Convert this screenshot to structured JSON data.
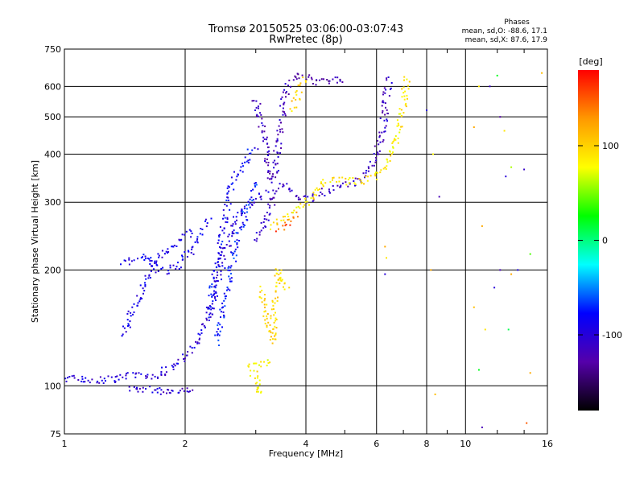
{
  "chart_data": {
    "type": "scatter",
    "title": "Tromsø 20150525 03:06:00-03:07:43",
    "subtitle": "RwPretec (8p)",
    "xlabel": "Frequency [MHz]",
    "ylabel": "Stationary phase Virtual Height [km]",
    "xscale": "log",
    "yscale": "log",
    "xlim": [
      1,
      16
    ],
    "ylim": [
      75,
      750
    ],
    "xticks": [
      1,
      2,
      4,
      6,
      8,
      10,
      16
    ],
    "xtick_labels": [
      "1",
      "2",
      "4",
      "6",
      "8",
      "10",
      "16"
    ],
    "yticks": [
      75,
      100,
      200,
      300,
      400,
      500,
      600,
      750
    ],
    "ytick_labels": [
      "75",
      "100",
      "200",
      "300",
      "400",
      "500",
      "600",
      "750"
    ],
    "grid": true,
    "phases_box": {
      "title": "Phases",
      "line_o": "mean, sd,O: -88.6, 17.1",
      "line_x": "mean, sd,X:  87.6, 17.9"
    },
    "colorbar": {
      "label": "[deg]",
      "range": [
        -180,
        180
      ],
      "ticks": [
        100,
        0,
        -100
      ],
      "tick_labels": [
        "100",
        "0",
        "-100"
      ],
      "colors": [
        "#ff0000",
        "#ff9900",
        "#ffff00",
        "#00ff00",
        "#00ffff",
        "#0000ff",
        "#5500aa",
        "#000000"
      ]
    },
    "traces": [
      {
        "mode": "O",
        "phase": -100,
        "points": [
          [
            1.0,
            105
          ],
          [
            1.1,
            104
          ],
          [
            1.2,
            103
          ],
          [
            1.3,
            104
          ],
          [
            1.4,
            106
          ],
          [
            1.5,
            107
          ],
          [
            1.6,
            106
          ],
          [
            1.7,
            106
          ],
          [
            1.8,
            110
          ],
          [
            1.9,
            113
          ],
          [
            2.0,
            118
          ],
          [
            2.1,
            125
          ],
          [
            2.2,
            137
          ],
          [
            2.3,
            155
          ],
          [
            2.4,
            180
          ],
          [
            2.5,
            215
          ],
          [
            2.6,
            250
          ],
          [
            2.7,
            275
          ],
          [
            2.8,
            290
          ],
          [
            3.0,
            305
          ],
          [
            3.2,
            320
          ]
        ]
      },
      {
        "mode": "O",
        "phase": -92,
        "points": [
          [
            1.4,
            135
          ],
          [
            1.45,
            150
          ],
          [
            1.5,
            160
          ],
          [
            1.55,
            178
          ],
          [
            1.6,
            190
          ],
          [
            1.65,
            200
          ],
          [
            1.7,
            215
          ],
          [
            1.8,
            225
          ],
          [
            1.9,
            235
          ],
          [
            2.0,
            245
          ],
          [
            2.1,
            255
          ]
        ]
      },
      {
        "mode": "O",
        "phase": -90,
        "points": [
          [
            1.4,
            210
          ],
          [
            1.5,
            212
          ],
          [
            1.6,
            218
          ],
          [
            1.65,
            210
          ],
          [
            1.7,
            202
          ],
          [
            1.8,
            198
          ],
          [
            1.9,
            205
          ],
          [
            2.0,
            215
          ],
          [
            2.1,
            230
          ],
          [
            2.2,
            250
          ],
          [
            2.3,
            270
          ]
        ]
      },
      {
        "mode": "O",
        "phase": -105,
        "points": [
          [
            1.45,
            98
          ],
          [
            1.55,
            97
          ],
          [
            1.65,
            98
          ],
          [
            1.75,
            97
          ],
          [
            1.9,
            98
          ],
          [
            2.05,
            97
          ],
          [
            2.1,
            98
          ]
        ]
      },
      {
        "mode": "O",
        "phase": -85,
        "points": [
          [
            2.3,
            150
          ],
          [
            2.35,
            180
          ],
          [
            2.4,
            210
          ],
          [
            2.45,
            240
          ],
          [
            2.5,
            270
          ],
          [
            2.55,
            300
          ],
          [
            2.6,
            330
          ],
          [
            2.7,
            360
          ],
          [
            2.8,
            380
          ],
          [
            2.9,
            400
          ],
          [
            3.0,
            420
          ]
        ]
      },
      {
        "mode": "O",
        "phase": -75,
        "points": [
          [
            2.4,
            130
          ],
          [
            2.5,
            160
          ],
          [
            2.6,
            200
          ],
          [
            2.7,
            240
          ],
          [
            2.8,
            270
          ],
          [
            2.9,
            300
          ],
          [
            3.0,
            340
          ]
        ]
      },
      {
        "mode": "O",
        "phase": -115,
        "points": [
          [
            3.0,
            560
          ],
          [
            3.05,
            520
          ],
          [
            3.1,
            480
          ],
          [
            3.15,
            440
          ],
          [
            3.2,
            400
          ],
          [
            3.25,
            360
          ],
          [
            3.3,
            340
          ],
          [
            3.35,
            360
          ],
          [
            3.4,
            420
          ],
          [
            3.5,
            520
          ],
          [
            3.6,
            600
          ],
          [
            3.8,
            640
          ]
        ]
      },
      {
        "mode": "O",
        "phase": -120,
        "points": [
          [
            3.8,
            640
          ],
          [
            4.0,
            635
          ],
          [
            4.2,
            610
          ],
          [
            4.4,
            615
          ],
          [
            4.6,
            620
          ],
          [
            4.8,
            625
          ],
          [
            5.0,
            630
          ]
        ]
      },
      {
        "mode": "O",
        "phase": -112,
        "points": [
          [
            3.0,
            240
          ],
          [
            3.1,
            255
          ],
          [
            3.2,
            270
          ],
          [
            3.3,
            300
          ],
          [
            3.4,
            325
          ],
          [
            3.5,
            335
          ],
          [
            3.6,
            330
          ],
          [
            3.7,
            320
          ],
          [
            3.8,
            310
          ],
          [
            4.0,
            305
          ],
          [
            4.2,
            310
          ],
          [
            4.5,
            320
          ],
          [
            4.8,
            330
          ],
          [
            5.0,
            335
          ],
          [
            5.3,
            340
          ],
          [
            5.6,
            350
          ],
          [
            5.8,
            370
          ],
          [
            6.0,
            400
          ],
          [
            6.2,
            450
          ],
          [
            6.3,
            520
          ],
          [
            6.4,
            600
          ],
          [
            6.45,
            640
          ]
        ]
      },
      {
        "mode": "X",
        "phase": 95,
        "points": [
          [
            3.1,
            180
          ],
          [
            3.15,
            165
          ],
          [
            3.2,
            150
          ],
          [
            3.25,
            140
          ],
          [
            3.3,
            130
          ],
          [
            3.35,
            165
          ],
          [
            3.4,
            200
          ],
          [
            3.5,
            190
          ],
          [
            3.6,
            175
          ]
        ]
      },
      {
        "mode": "X",
        "phase": 90,
        "points": [
          [
            3.3,
            260
          ],
          [
            3.5,
            270
          ],
          [
            3.7,
            285
          ],
          [
            3.9,
            295
          ],
          [
            4.1,
            305
          ],
          [
            4.3,
            330
          ],
          [
            4.6,
            345
          ],
          [
            5.0,
            340
          ],
          [
            5.5,
            340
          ],
          [
            5.8,
            345
          ],
          [
            6.0,
            350
          ],
          [
            6.3,
            370
          ],
          [
            6.6,
            400
          ],
          [
            6.8,
            460
          ],
          [
            7.0,
            530
          ],
          [
            7.1,
            600
          ],
          [
            7.15,
            640
          ]
        ]
      },
      {
        "mode": "X",
        "phase": 150,
        "points": [
          [
            3.4,
            255
          ],
          [
            3.5,
            260
          ],
          [
            3.6,
            265
          ],
          [
            3.7,
            275
          ],
          [
            3.8,
            285
          ]
        ]
      },
      {
        "mode": "X",
        "phase": 85,
        "points": [
          [
            3.0,
            98
          ],
          [
            3.05,
            97
          ],
          [
            3.1,
            98
          ],
          [
            2.9,
            112
          ],
          [
            3.0,
            113
          ],
          [
            3.3,
            115
          ]
        ]
      },
      {
        "mode": "X",
        "phase": 100,
        "points": [
          [
            3.7,
            520
          ],
          [
            3.8,
            560
          ],
          [
            3.9,
            600
          ],
          [
            4.0,
            630
          ]
        ]
      }
    ],
    "scatter_points": [
      [
        8.0,
        520,
        -100
      ],
      [
        8.3,
        400,
        80
      ],
      [
        8.6,
        310,
        -120
      ],
      [
        10.5,
        470,
        120
      ],
      [
        10.8,
        600,
        90
      ],
      [
        11.0,
        260,
        120
      ],
      [
        11.5,
        600,
        -110
      ],
      [
        12.0,
        640,
        20
      ],
      [
        12.2,
        500,
        -130
      ],
      [
        12.5,
        460,
        90
      ],
      [
        12.6,
        350,
        -100
      ],
      [
        13.0,
        370,
        60
      ],
      [
        13.5,
        200,
        -95
      ],
      [
        14.0,
        365,
        -110
      ],
      [
        14.5,
        220,
        40
      ],
      [
        15.5,
        650,
        110
      ],
      [
        8.2,
        200,
        120
      ],
      [
        8.4,
        95,
        110
      ],
      [
        10.5,
        160,
        110
      ],
      [
        10.8,
        110,
        20
      ],
      [
        11.2,
        140,
        90
      ],
      [
        11.8,
        180,
        -100
      ],
      [
        12.2,
        200,
        -120
      ],
      [
        12.8,
        140,
        10
      ],
      [
        13.0,
        195,
        120
      ],
      [
        14.5,
        108,
        120
      ],
      [
        14.2,
        80,
        150
      ],
      [
        11.0,
        78,
        -120
      ],
      [
        6.3,
        230,
        120
      ],
      [
        6.3,
        195,
        -100
      ],
      [
        6.35,
        215,
        90
      ]
    ]
  }
}
